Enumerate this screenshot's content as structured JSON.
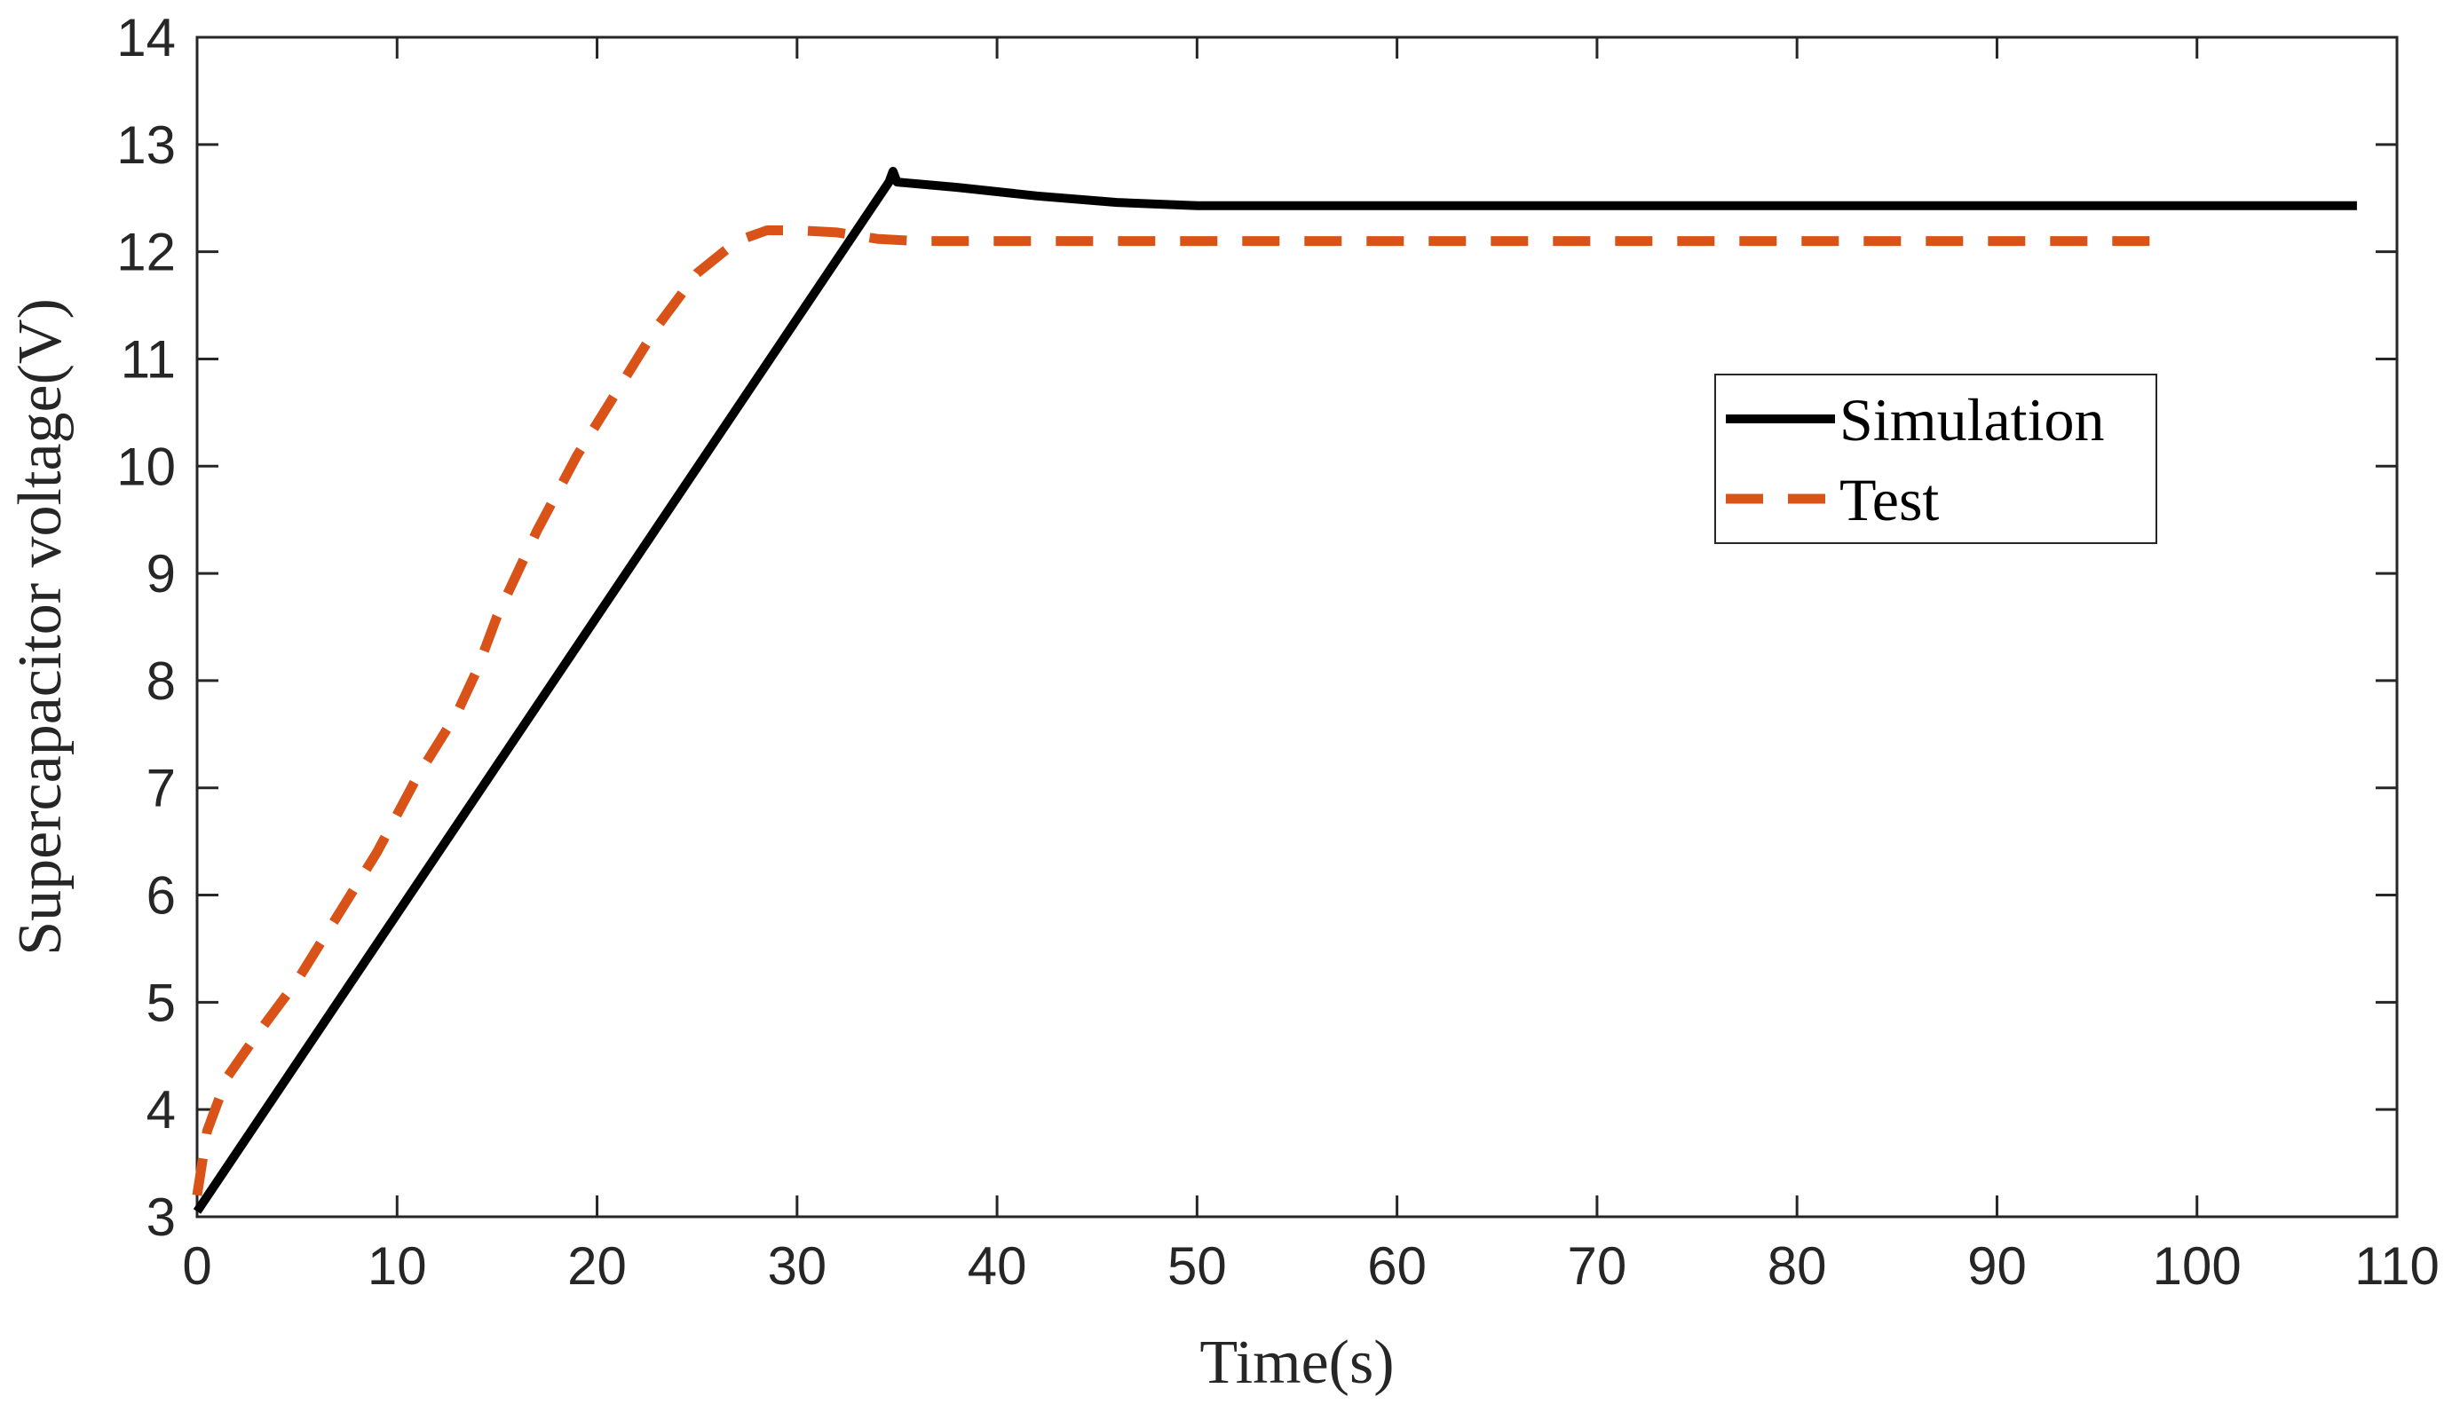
{
  "chart_data": {
    "type": "line",
    "title": "",
    "xlabel": "Time(s)",
    "ylabel": "Supercapacitor voltage(V)",
    "xlim": [
      0,
      110
    ],
    "ylim": [
      3,
      14
    ],
    "xticks": [
      0,
      10,
      20,
      30,
      40,
      50,
      60,
      70,
      80,
      90,
      100,
      110
    ],
    "yticks": [
      3,
      4,
      5,
      6,
      7,
      8,
      9,
      10,
      11,
      12,
      13,
      14
    ],
    "grid": false,
    "legend_position": "right",
    "series": [
      {
        "name": "Simulation",
        "color": "#000000",
        "style": "solid",
        "x": [
          0,
          34.6,
          34.8,
          35.0,
          38,
          42,
          46,
          50,
          55,
          108
        ],
        "y": [
          3.05,
          12.65,
          12.75,
          12.65,
          12.6,
          12.52,
          12.46,
          12.43,
          12.43,
          12.43
        ]
      },
      {
        "name": "Test",
        "color": "#d95319",
        "style": "dashed",
        "x": [
          0,
          0.5,
          1.5,
          3,
          5,
          7,
          9,
          11,
          13,
          14,
          15,
          17,
          19,
          21,
          23,
          25,
          27,
          28.5,
          30,
          32,
          34,
          36,
          40,
          60,
          98
        ],
        "y": [
          3.2,
          3.8,
          4.3,
          4.7,
          5.2,
          5.8,
          6.4,
          7.1,
          7.7,
          8.1,
          8.6,
          9.4,
          10.1,
          10.7,
          11.3,
          11.8,
          12.1,
          12.2,
          12.2,
          12.18,
          12.12,
          12.1,
          12.1,
          12.1,
          12.1
        ]
      }
    ]
  }
}
